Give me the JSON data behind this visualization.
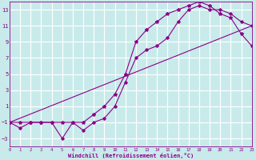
{
  "xlabel": "Windchill (Refroidissement éolien,°C)",
  "bg_color": "#c8eaea",
  "line_color": "#880088",
  "grid_color": "#b0d8d8",
  "xlim": [
    0,
    23
  ],
  "ylim": [
    -4,
    14
  ],
  "xticks": [
    0,
    1,
    2,
    3,
    4,
    5,
    6,
    7,
    8,
    9,
    10,
    11,
    12,
    13,
    14,
    15,
    16,
    17,
    18,
    19,
    20,
    21,
    22,
    23
  ],
  "yticks": [
    -3,
    -1,
    1,
    3,
    5,
    7,
    9,
    11,
    13
  ],
  "line1_x": [
    0,
    1,
    2,
    3,
    4,
    5,
    6,
    7,
    8,
    9,
    10,
    11,
    12,
    13,
    14,
    15,
    16,
    17,
    18,
    19,
    20,
    21,
    22,
    23
  ],
  "line1_y": [
    -1.0,
    -1.7,
    -1.0,
    -1.0,
    -1.0,
    -3.0,
    -1.0,
    -2.0,
    -1.0,
    -0.5,
    1.0,
    4.0,
    7.0,
    8.0,
    8.5,
    9.5,
    11.5,
    13.0,
    13.5,
    13.0,
    13.0,
    12.5,
    11.5,
    11.0
  ],
  "line2_x": [
    0,
    1,
    2,
    3,
    4,
    5,
    6,
    7,
    8,
    9,
    10,
    11,
    12,
    13,
    14,
    15,
    16,
    17,
    18,
    19,
    20,
    21,
    22,
    23
  ],
  "line2_y": [
    -1.0,
    -1.0,
    -1.0,
    -1.0,
    -1.0,
    -1.0,
    -1.0,
    -1.0,
    0.0,
    1.0,
    2.5,
    5.0,
    9.0,
    10.5,
    11.5,
    12.5,
    13.0,
    13.5,
    14.0,
    13.5,
    12.5,
    12.0,
    10.0,
    8.5
  ],
  "line3_x": [
    0,
    23
  ],
  "line3_y": [
    -1.0,
    11.0
  ]
}
